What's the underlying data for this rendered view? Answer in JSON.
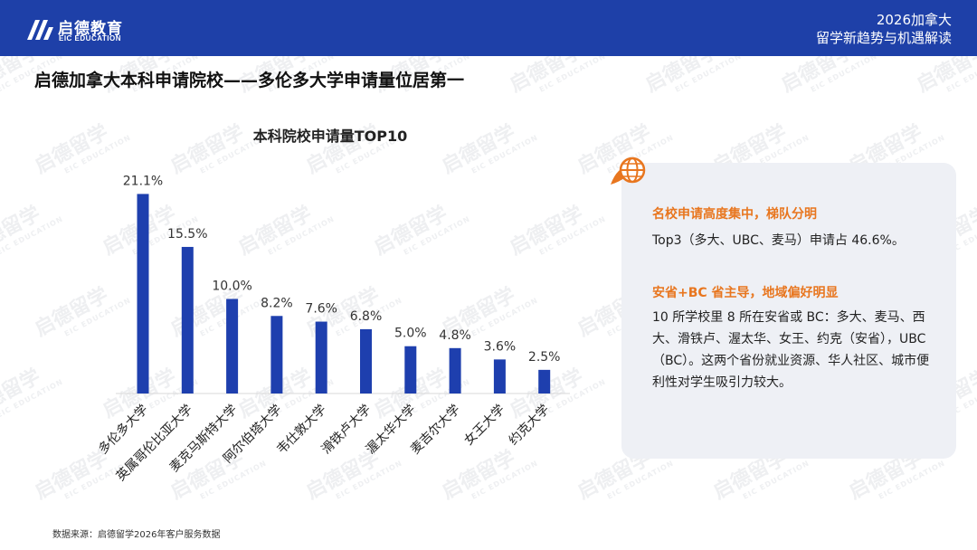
{
  "header": {
    "logo_cn": "启德教育",
    "logo_en": "EIC EDUCATION",
    "right_line1": "2026加拿大",
    "right_line2": "留学新趋势与机遇解读",
    "bg_color": "#1e40a8"
  },
  "page_title": "启德加拿大本科申请院校——多伦多大学申请量位居第一",
  "watermark": {
    "cn": "启德留学",
    "en": "EIC EDUCATION"
  },
  "chart_data": {
    "type": "bar",
    "title": "本科院校申请量TOP10",
    "categories": [
      "多伦多大学",
      "英属哥伦比亚大学",
      "麦克马斯特大学",
      "阿尔伯塔大学",
      "韦仕敦大学",
      "滑铁卢大学",
      "渥太华大学",
      "麦吉尔大学",
      "女王大学",
      "约克大学"
    ],
    "values": [
      21.1,
      15.5,
      10.0,
      8.2,
      7.6,
      6.8,
      5.0,
      4.8,
      3.6,
      2.5
    ],
    "value_labels": [
      "21.1%",
      "15.5%",
      "10.0%",
      "8.2%",
      "7.6%",
      "6.8%",
      "5.0%",
      "4.8%",
      "3.6%",
      "2.5%"
    ],
    "unit": "%",
    "ylim": [
      0,
      22
    ],
    "grid": false,
    "bar_color": "#1e3fae"
  },
  "info": {
    "heading1": "名校申请高度集中，梯队分明",
    "text1": "Top3（多大、UBC、麦马）申请占 46.6%。",
    "heading2": "安省+BC 省主导，地域偏好明显",
    "text2": "10 所学校里 8 所在安省或 BC：多大、麦马、西大、滑铁卢、渥太华、女王、约克（安省），UBC（BC）。这两个省份就业资源、华人社区、城市便利性对学生吸引力较大。",
    "accent_color": "#e8761f",
    "icon": "globe-leaf-icon"
  },
  "source": "数据来源：启德留学2026年客户服务数据"
}
